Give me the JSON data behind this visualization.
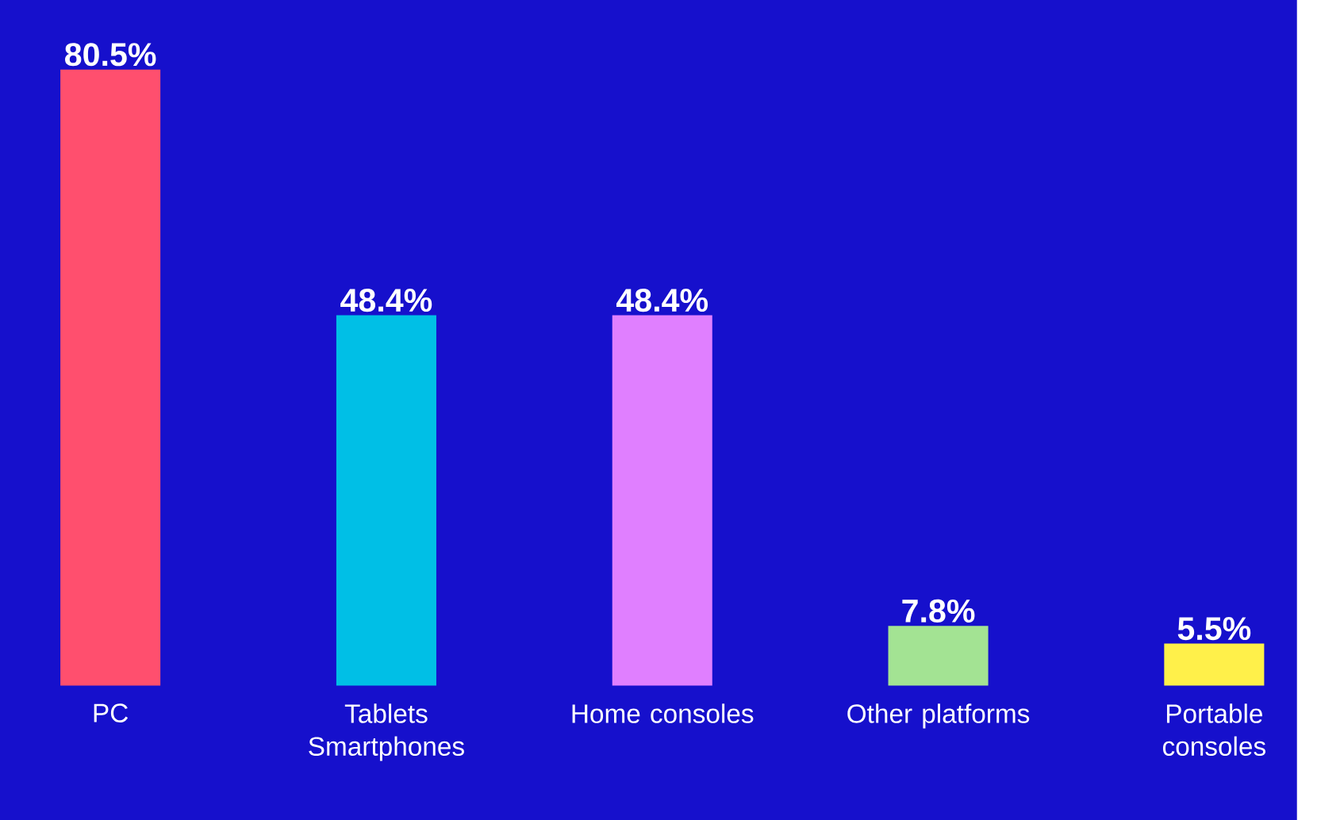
{
  "chart_data": {
    "type": "bar",
    "categories": [
      "PC",
      "Tablets Smartphones",
      "Home consoles",
      "Other platforms",
      "Portable consoles"
    ],
    "values": [
      80.5,
      48.4,
      48.4,
      7.8,
      5.5
    ],
    "colors": [
      "#ff4f6e",
      "#00bfe6",
      "#e07fff",
      "#a3e393",
      "#fff04a"
    ],
    "value_labels": [
      "80.5%",
      "48.4%",
      "48.4%",
      "7.8%",
      "5.5%"
    ]
  }
}
